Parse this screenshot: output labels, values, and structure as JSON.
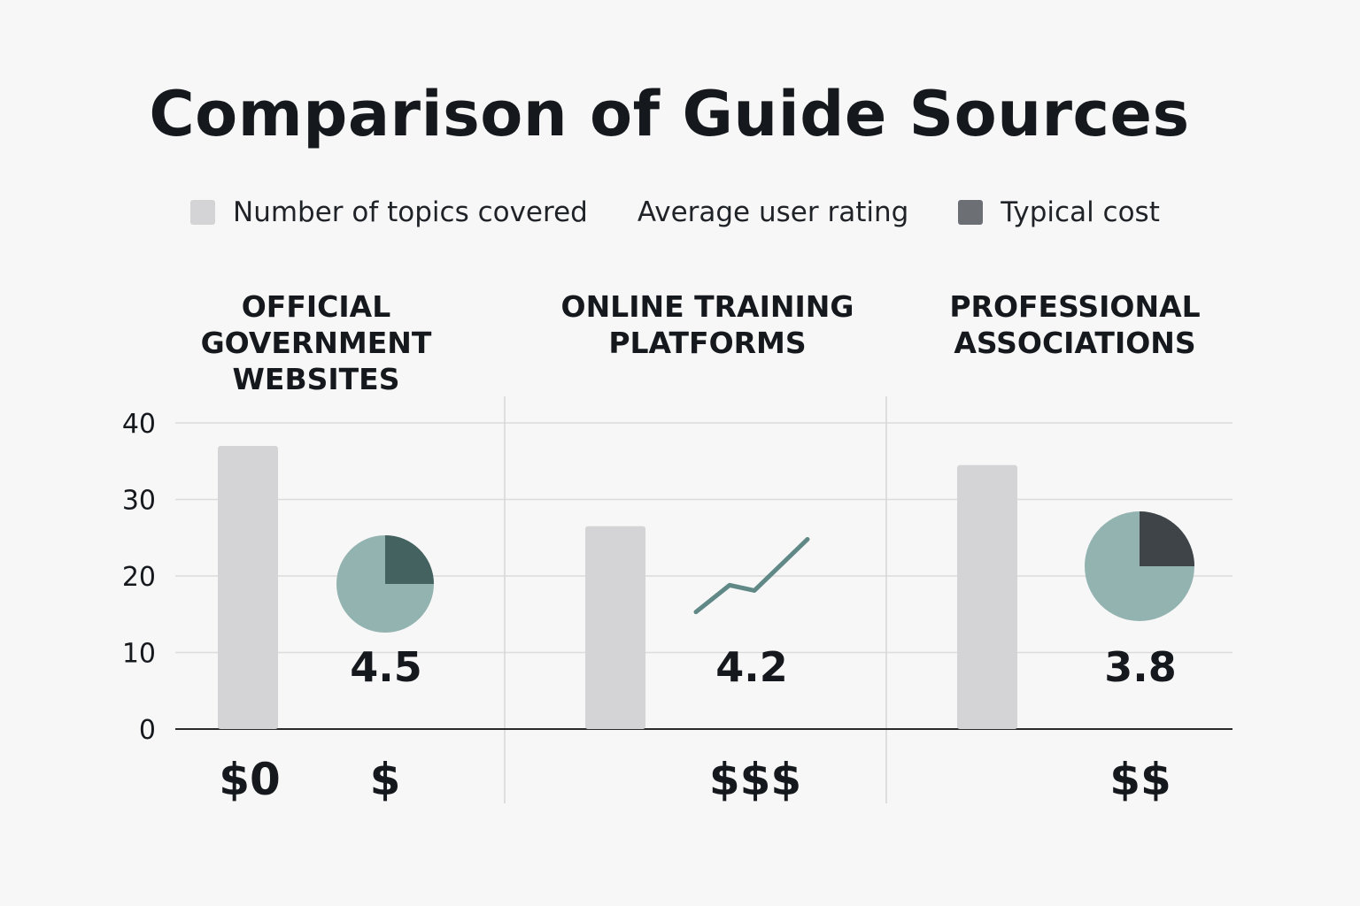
{
  "chart_data": {
    "type": "bar",
    "title": "Comparison of Guide Sources",
    "legend": [
      {
        "label": "Number of topics covered",
        "color": "#d4d4d6"
      },
      {
        "label": "Average user rating",
        "color": ""
      },
      {
        "label": "Typical cost",
        "color": "#6c6f74"
      }
    ],
    "ylim": [
      0,
      40
    ],
    "yticks": [
      "0",
      "10",
      "20",
      "30",
      "40"
    ],
    "grid": true,
    "categories": [
      {
        "title_lines": [
          "OFFICIAL",
          "GOVERNMENT",
          "WEBSITES"
        ],
        "topics": 37,
        "rating": "4.5",
        "rating_marker": "pie",
        "rating_fraction": 0.25,
        "costs": [
          "$0",
          "$"
        ]
      },
      {
        "title_lines": [
          "ONLINE TRAINING",
          "PLATFORMS"
        ],
        "topics": 26.5,
        "rating": "4.2",
        "rating_marker": "line",
        "rating_trend": [
          15.3,
          18.8,
          18.1,
          24.8
        ],
        "costs": [
          "$$$"
        ]
      },
      {
        "title_lines": [
          "PROFESSIONAL",
          "ASSOCIATIONS"
        ],
        "topics": 34.5,
        "rating": "3.8",
        "rating_marker": "pie",
        "rating_fraction": 0.25,
        "costs": [
          "$$"
        ]
      }
    ],
    "colors": {
      "bar": "#d4d4d6",
      "pie_main": "#93b3b0",
      "pie_slice_first": "#44625f",
      "pie_slice_last": "#3f4448",
      "trend_line": "#5f8886",
      "grid": "#dcdcdc",
      "axis": "#2a2a2a",
      "divider": "#d6d6d6"
    }
  }
}
